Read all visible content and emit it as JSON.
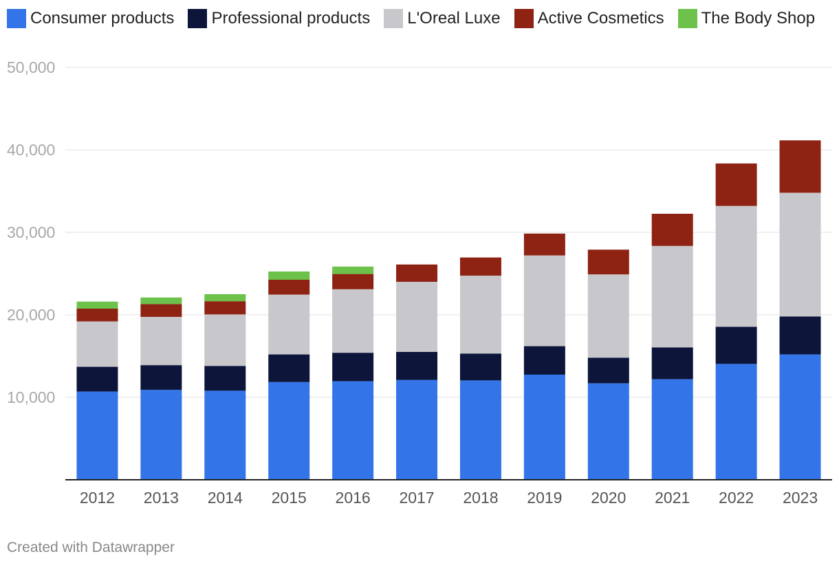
{
  "chart_data": {
    "type": "bar",
    "stacked": true,
    "title": "",
    "xlabel": "",
    "ylabel": "",
    "ylim": [
      0,
      50000
    ],
    "y_ticks": [
      10000,
      20000,
      30000,
      40000,
      50000
    ],
    "y_tick_labels": [
      "10,000",
      "20,000",
      "30,000",
      "40,000",
      "50,000"
    ],
    "grid": true,
    "legend_position": "top-left",
    "categories": [
      "2012",
      "2013",
      "2014",
      "2015",
      "2016",
      "2017",
      "2018",
      "2019",
      "2020",
      "2021",
      "2022",
      "2023"
    ],
    "series": [
      {
        "name": "Consumer products",
        "color": "#3374e8",
        "values": [
          10700,
          10900,
          10800,
          11850,
          11950,
          12100,
          12050,
          12750,
          11700,
          12200,
          14050,
          15200
        ]
      },
      {
        "name": "Professional products",
        "color": "#0d153a",
        "values": [
          3000,
          3000,
          3000,
          3350,
          3450,
          3400,
          3250,
          3450,
          3100,
          3850,
          4500,
          4600
        ]
      },
      {
        "name": "L'Oreal Luxe",
        "color": "#c8c8cc",
        "values": [
          5500,
          5850,
          6250,
          7250,
          7700,
          8500,
          9450,
          11000,
          10100,
          12300,
          14650,
          15000
        ]
      },
      {
        "name": "Active Cosmetics",
        "color": "#8e2313",
        "values": [
          1550,
          1550,
          1600,
          1800,
          1850,
          2100,
          2200,
          2650,
          3000,
          3900,
          5150,
          6350
        ]
      },
      {
        "name": "The Body Shop",
        "color": "#6cc24a",
        "values": [
          850,
          800,
          850,
          1000,
          900,
          0,
          0,
          0,
          0,
          0,
          0,
          0
        ]
      }
    ]
  },
  "footer": {
    "credit": "Created with Datawrapper"
  }
}
